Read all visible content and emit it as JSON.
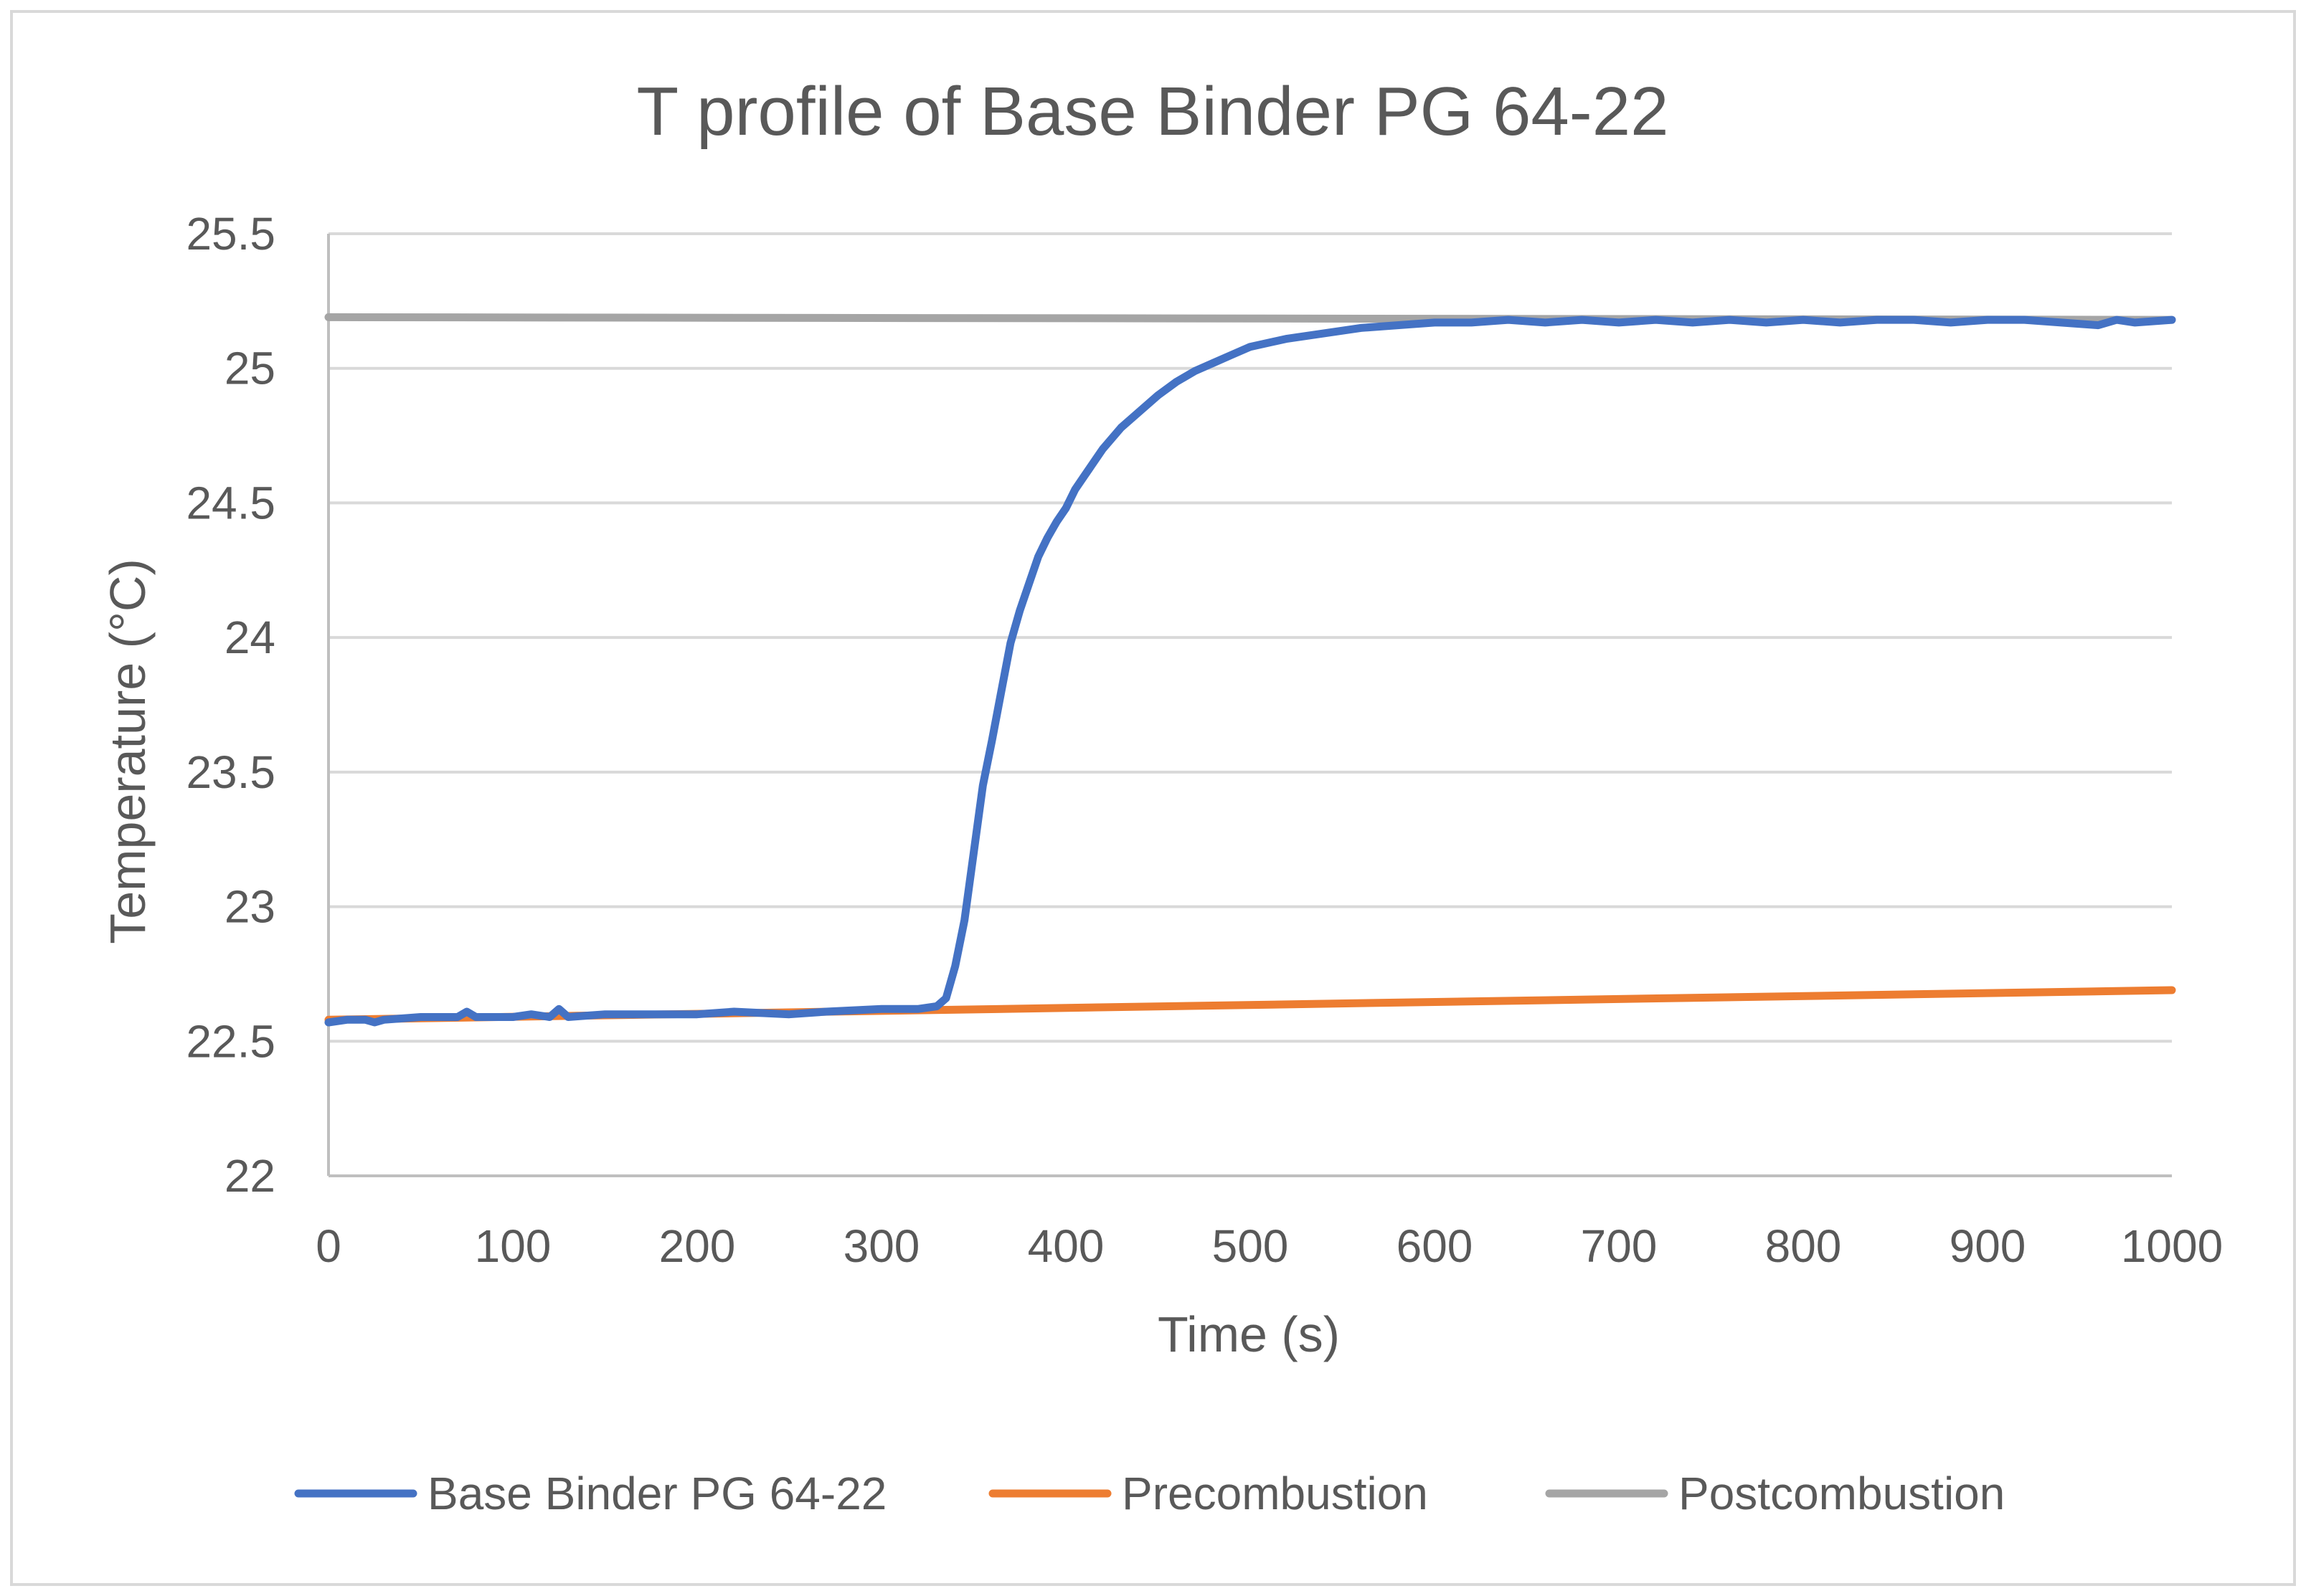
{
  "chart_data": {
    "type": "line",
    "title": "T profile of Base Binder PG 64-22",
    "xlabel": "Time (s)",
    "ylabel": "Temperature (°C)",
    "xlim": [
      0,
      1000
    ],
    "ylim": [
      22,
      25.5
    ],
    "x_ticks": [
      0,
      100,
      200,
      300,
      400,
      500,
      600,
      700,
      800,
      900,
      1000
    ],
    "x_tick_labels": [
      "0",
      "100",
      "200",
      "300",
      "400",
      "500",
      "600",
      "700",
      "800",
      "900",
      "1000"
    ],
    "y_ticks": [
      22,
      22.5,
      23,
      23.5,
      24,
      24.5,
      25,
      25.5
    ],
    "y_tick_labels": [
      "22",
      "22.5",
      "23",
      "23.5",
      "24",
      "24.5",
      "25",
      "25.5"
    ],
    "grid": true,
    "legend_position": "bottom",
    "series": [
      {
        "name": "Base Binder PG 64-22",
        "color": "#4472c4",
        "points": [
          [
            0,
            22.57
          ],
          [
            10,
            22.58
          ],
          [
            20,
            22.58
          ],
          [
            25,
            22.57
          ],
          [
            30,
            22.58
          ],
          [
            50,
            22.59
          ],
          [
            70,
            22.59
          ],
          [
            75,
            22.61
          ],
          [
            80,
            22.59
          ],
          [
            100,
            22.59
          ],
          [
            110,
            22.6
          ],
          [
            120,
            22.59
          ],
          [
            125,
            22.62
          ],
          [
            130,
            22.59
          ],
          [
            150,
            22.6
          ],
          [
            170,
            22.6
          ],
          [
            200,
            22.6
          ],
          [
            220,
            22.61
          ],
          [
            250,
            22.6
          ],
          [
            270,
            22.61
          ],
          [
            300,
            22.62
          ],
          [
            320,
            22.62
          ],
          [
            330,
            22.63
          ],
          [
            335,
            22.66
          ],
          [
            340,
            22.78
          ],
          [
            345,
            22.95
          ],
          [
            350,
            23.2
          ],
          [
            355,
            23.45
          ],
          [
            360,
            23.62
          ],
          [
            365,
            23.8
          ],
          [
            370,
            23.98
          ],
          [
            375,
            24.1
          ],
          [
            380,
            24.2
          ],
          [
            385,
            24.3
          ],
          [
            390,
            24.37
          ],
          [
            395,
            24.43
          ],
          [
            400,
            24.48
          ],
          [
            405,
            24.55
          ],
          [
            410,
            24.6
          ],
          [
            420,
            24.7
          ],
          [
            430,
            24.78
          ],
          [
            440,
            24.84
          ],
          [
            450,
            24.9
          ],
          [
            460,
            24.95
          ],
          [
            470,
            24.99
          ],
          [
            480,
            25.02
          ],
          [
            490,
            25.05
          ],
          [
            500,
            25.08
          ],
          [
            520,
            25.11
          ],
          [
            540,
            25.13
          ],
          [
            560,
            25.15
          ],
          [
            580,
            25.16
          ],
          [
            600,
            25.17
          ],
          [
            620,
            25.17
          ],
          [
            640,
            25.18
          ],
          [
            660,
            25.17
          ],
          [
            680,
            25.18
          ],
          [
            700,
            25.17
          ],
          [
            720,
            25.18
          ],
          [
            740,
            25.17
          ],
          [
            760,
            25.18
          ],
          [
            780,
            25.17
          ],
          [
            800,
            25.18
          ],
          [
            820,
            25.17
          ],
          [
            840,
            25.18
          ],
          [
            860,
            25.18
          ],
          [
            880,
            25.17
          ],
          [
            900,
            25.18
          ],
          [
            920,
            25.18
          ],
          [
            940,
            25.17
          ],
          [
            960,
            25.16
          ],
          [
            970,
            25.18
          ],
          [
            980,
            25.17
          ],
          [
            1000,
            25.18
          ]
        ]
      },
      {
        "name": "Precombustion",
        "color": "#ed7d31",
        "points": [
          [
            0,
            22.58
          ],
          [
            1000,
            22.69
          ]
        ]
      },
      {
        "name": "Postcombustion",
        "color": "#a5a5a5",
        "points": [
          [
            0,
            25.19
          ],
          [
            1000,
            25.18
          ]
        ]
      }
    ]
  }
}
